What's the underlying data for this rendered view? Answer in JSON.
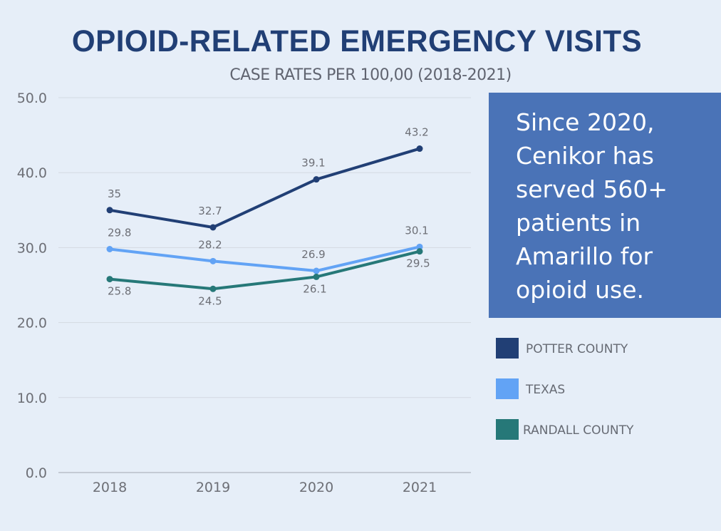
{
  "header": {
    "title": "OPIOID-RELATED EMERGENCY VISITS",
    "subtitle": "CASE RATES PER 100,00 (2018-2021)"
  },
  "callout": {
    "lines": [
      "Since 2020,",
      "Cenikor has",
      "served 560+",
      "patients in",
      "Amarillo for",
      "opioid use."
    ],
    "background": "#4a73b7"
  },
  "chart_data": {
    "type": "line",
    "title": "OPIOID-RELATED EMERGENCY VISITS",
    "subtitle": "CASE RATES PER 100,00 (2018-2021)",
    "xlabel": "",
    "ylabel": "",
    "categories": [
      "2018",
      "2019",
      "2020",
      "2021"
    ],
    "ylim": [
      0,
      50
    ],
    "yticks": [
      0,
      10,
      20,
      30,
      40,
      50
    ],
    "ytick_labels": [
      "0.0",
      "10.0",
      "20.0",
      "30.0",
      "40.0",
      "50.0"
    ],
    "grid": true,
    "legend_position": "right",
    "series": [
      {
        "name": "POTTER COUNTY",
        "color": "#213f75",
        "values": [
          35,
          32.7,
          39.1,
          43.2
        ],
        "labels": [
          "35",
          "32.7",
          "39.1",
          "43.2"
        ],
        "label_side": [
          "above",
          "above",
          "above",
          "above"
        ]
      },
      {
        "name": "TEXAS",
        "color": "#62a3f5",
        "values": [
          29.8,
          28.2,
          26.9,
          30.1
        ],
        "labels": [
          "29.8",
          "28.2",
          "26.9",
          "30.1"
        ],
        "label_side": [
          "above",
          "above",
          "above",
          "above"
        ]
      },
      {
        "name": "RANDALL COUNTY",
        "color": "#267878",
        "values": [
          25.8,
          24.5,
          26.1,
          29.5
        ],
        "labels": [
          "25.8",
          "24.5",
          "26.1",
          "29.5"
        ],
        "label_side": [
          "below",
          "below",
          "below",
          "below"
        ]
      }
    ]
  }
}
